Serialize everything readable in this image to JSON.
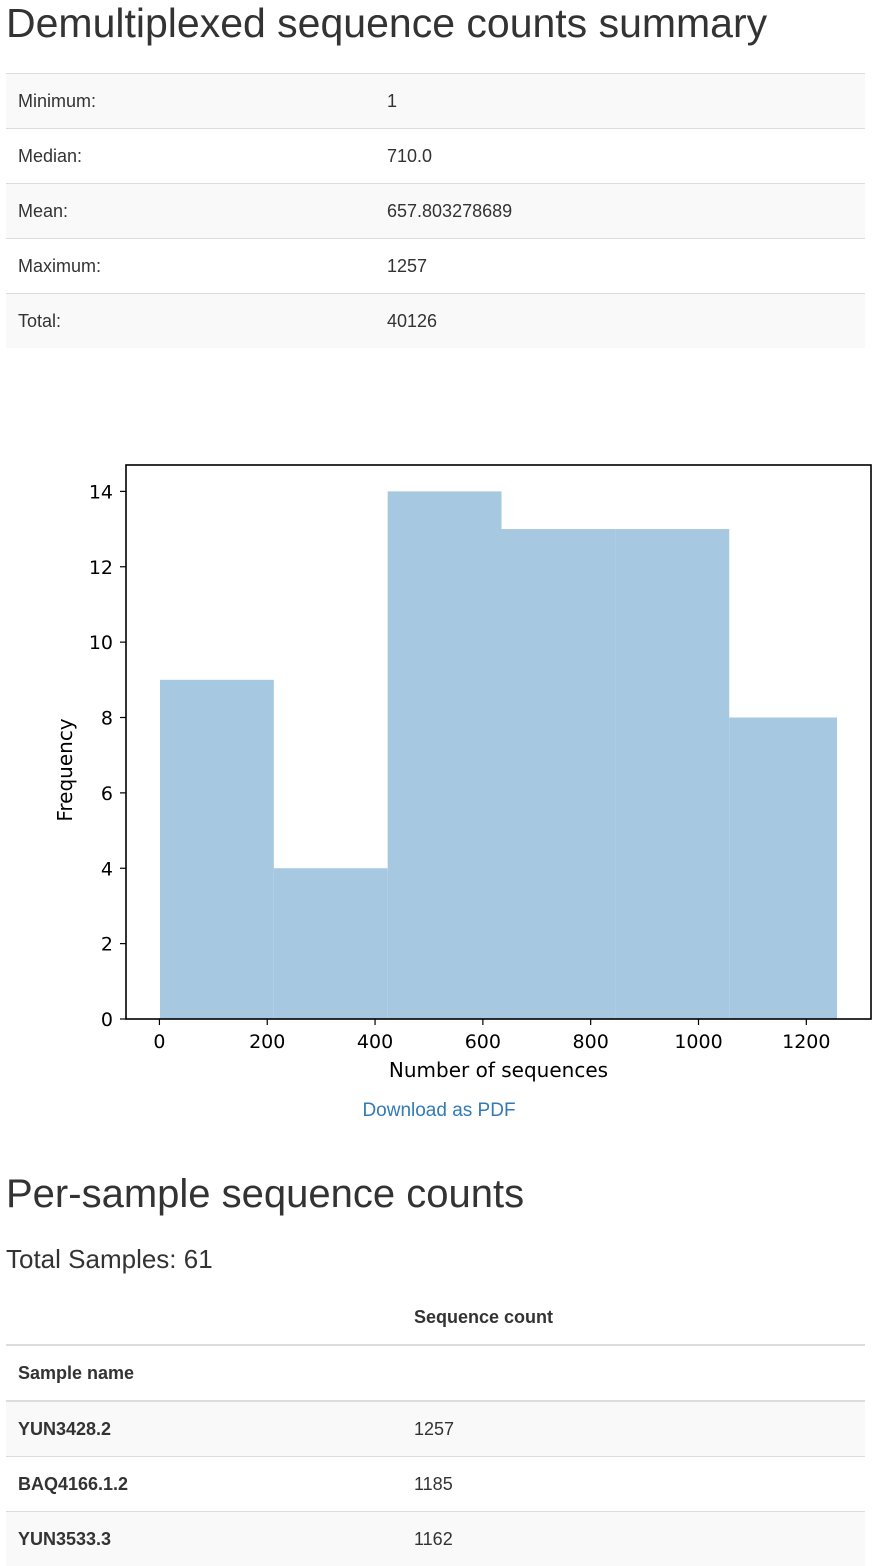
{
  "summary": {
    "title": "Demultiplexed sequence counts summary",
    "rows": [
      {
        "label": "Minimum:",
        "value": "1"
      },
      {
        "label": "Median:",
        "value": "710.0"
      },
      {
        "label": "Mean:",
        "value": "657.803278689"
      },
      {
        "label": "Maximum:",
        "value": "1257"
      },
      {
        "label": "Total:",
        "value": "40126"
      }
    ]
  },
  "chart_data": {
    "type": "bar",
    "bins": [
      {
        "x0": 1,
        "x1": 212.2,
        "count": 9
      },
      {
        "x0": 212.2,
        "x1": 423.4,
        "count": 4
      },
      {
        "x0": 423.4,
        "x1": 634.6,
        "count": 14
      },
      {
        "x0": 634.6,
        "x1": 845.8,
        "count": 13
      },
      {
        "x0": 845.8,
        "x1": 1057,
        "count": 13
      },
      {
        "x0": 1057,
        "x1": 1257,
        "count": 8
      }
    ],
    "xlabel": "Number of sequences",
    "ylabel": "Frequency",
    "xlim": [
      -62,
      1320
    ],
    "ylim": [
      0,
      14.7
    ],
    "xticks": [
      0,
      200,
      400,
      600,
      800,
      1000,
      1200
    ],
    "yticks": [
      0,
      2,
      4,
      6,
      8,
      10,
      12,
      14
    ],
    "color": "#a6c8e0",
    "grid": false
  },
  "download": {
    "label": "Download as PDF"
  },
  "per_sample": {
    "title": "Per-sample sequence counts",
    "total_label": "Total Samples: 61",
    "column_header": "Sequence count",
    "index_header": "Sample name",
    "rows": [
      {
        "name": "YUN3428.2",
        "count": "1257"
      },
      {
        "name": "BAQ4166.1.2",
        "count": "1185"
      },
      {
        "name": "YUN3533.3",
        "count": "1162"
      }
    ]
  }
}
